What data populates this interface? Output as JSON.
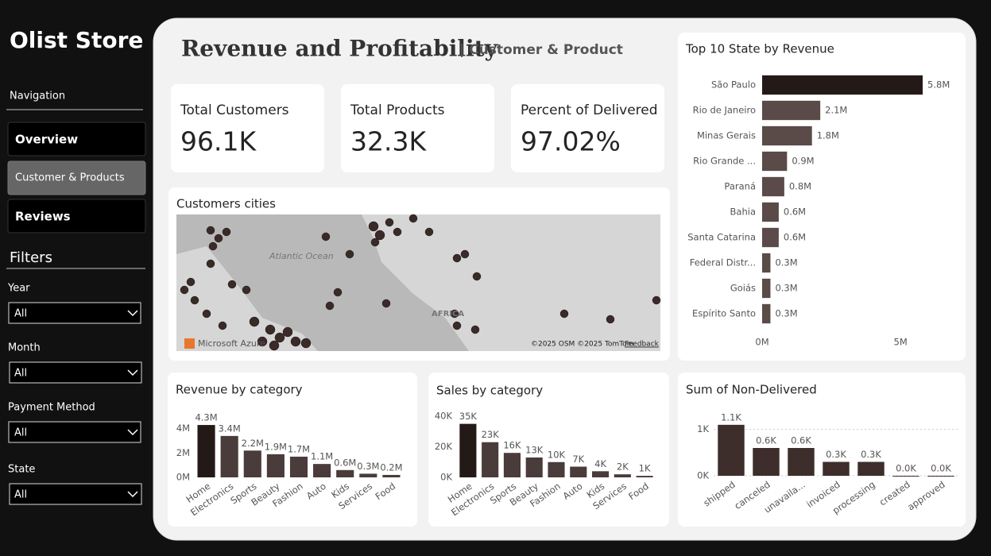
{
  "sidebar": {
    "title": "Olist Store",
    "navigation": "Navigation",
    "nav": [
      "Overview",
      "Customer & Products",
      "Reviews"
    ],
    "filters_title": "Filters",
    "filters": [
      {
        "label": "Year",
        "value": "All"
      },
      {
        "label": "Month",
        "value": "All"
      },
      {
        "label": "Payment Method",
        "value": "All"
      },
      {
        "label": "State",
        "value": "All"
      }
    ]
  },
  "header": {
    "title": "Revenue and Profitability",
    "subtitle": "| Customer & Product"
  },
  "kpis": [
    {
      "label": "Total Customers",
      "value": "96.1K"
    },
    {
      "label": "Total Products",
      "value": "32.3K"
    },
    {
      "label": "Percent of Delivered",
      "value": "97.02%"
    }
  ],
  "map": {
    "title": "Customers cities",
    "labels": [
      "Atlantic Ocean",
      "AFRICA"
    ],
    "brand": "Microsoft Azure",
    "credits": "©2025 OSM ©2025 TomTom",
    "feedback": "Feedback"
  },
  "chart_data": [
    {
      "type": "bar",
      "orientation": "horizontal",
      "title": "Top 10 State by Revenue",
      "categories": [
        "São Paulo",
        "Rio de Janeiro",
        "Minas Gerais",
        "Rio Grande ...",
        "Paraná",
        "Bahia",
        "Santa Catarina",
        "Federal Distr...",
        "Goiás",
        "Espírito Santo"
      ],
      "values": [
        5.8,
        2.1,
        1.8,
        0.9,
        0.8,
        0.6,
        0.6,
        0.3,
        0.3,
        0.3
      ],
      "value_labels": [
        "5.8M",
        "2.1M",
        "1.8M",
        "0.9M",
        "0.8M",
        "0.6M",
        "0.6M",
        "0.3M",
        "0.3M",
        "0.3M"
      ],
      "colors": [
        "#231a18",
        "#5a4a48",
        "#5a4a48",
        "#5a4a48",
        "#5a4a48",
        "#5a4a48",
        "#5a4a48",
        "#5a4a48",
        "#5a4a48",
        "#5a4a48"
      ],
      "xlim": [
        0,
        6
      ],
      "xticks": [
        {
          "value": 0,
          "label": "0M"
        },
        {
          "value": 5,
          "label": "5M"
        }
      ],
      "grid": false
    },
    {
      "type": "bar",
      "title": "Revenue by category",
      "categories": [
        "Home",
        "Electronics",
        "Sports",
        "Beauty",
        "Fashion",
        "Auto",
        "Kids",
        "Services",
        "Food"
      ],
      "values": [
        4.3,
        3.4,
        2.2,
        1.9,
        1.7,
        1.1,
        0.6,
        0.3,
        0.2
      ],
      "value_labels": [
        "4.3M",
        "3.4M",
        "2.2M",
        "1.9M",
        "1.7M",
        "1.1M",
        "0.6M",
        "0.3M",
        "0.2M"
      ],
      "colors": [
        "#231a18",
        "#4a3c3a",
        "#4a3c3a",
        "#4a3c3a",
        "#4a3c3a",
        "#4a3c3a",
        "#4a3c3a",
        "#4a3c3a",
        "#4a3c3a"
      ],
      "ylim": [
        0,
        4.5
      ],
      "yticks": [
        {
          "value": 0,
          "label": "0M"
        },
        {
          "value": 2,
          "label": "2M"
        },
        {
          "value": 4,
          "label": "4M"
        }
      ],
      "grid": false
    },
    {
      "type": "bar",
      "title": "Sales by category",
      "categories": [
        "Home",
        "Electronics",
        "Sports",
        "Beauty",
        "Fashion",
        "Auto",
        "Kids",
        "Services",
        "Food"
      ],
      "values": [
        35,
        23,
        16,
        13,
        10,
        7,
        4,
        2,
        1
      ],
      "value_labels": [
        "35K",
        "23K",
        "16K",
        "13K",
        "10K",
        "7K",
        "4K",
        "2K",
        "1K"
      ],
      "colors": [
        "#231a18",
        "#4a3c3a",
        "#4a3c3a",
        "#4a3c3a",
        "#4a3c3a",
        "#4a3c3a",
        "#4a3c3a",
        "#4a3c3a",
        "#4a3c3a"
      ],
      "ylim": [
        0,
        40
      ],
      "yticks": [
        {
          "value": 0,
          "label": "0K"
        },
        {
          "value": 20,
          "label": "20K"
        },
        {
          "value": 40,
          "label": "40K"
        }
      ],
      "grid": false
    },
    {
      "type": "bar",
      "title": "Sum of Non-Delivered",
      "categories": [
        "shipped",
        "canceled",
        "unavaila...",
        "invoiced",
        "processing",
        "created",
        "approved"
      ],
      "values": [
        1.1,
        0.6,
        0.6,
        0.3,
        0.3,
        0.0,
        0.0
      ],
      "value_labels": [
        "1.1K",
        "0.6K",
        "0.6K",
        "0.3K",
        "0.3K",
        "0.0K",
        "0.0K"
      ],
      "colors": [
        "#3d2e2c",
        "#3d2e2c",
        "#3d2e2c",
        "#3d2e2c",
        "#3d2e2c",
        "#3d2e2c",
        "#3d2e2c"
      ],
      "ylim": [
        0,
        1.2
      ],
      "yticks": [
        {
          "value": 0,
          "label": "0K"
        },
        {
          "value": 1,
          "label": "1K"
        }
      ],
      "grid": true
    }
  ]
}
